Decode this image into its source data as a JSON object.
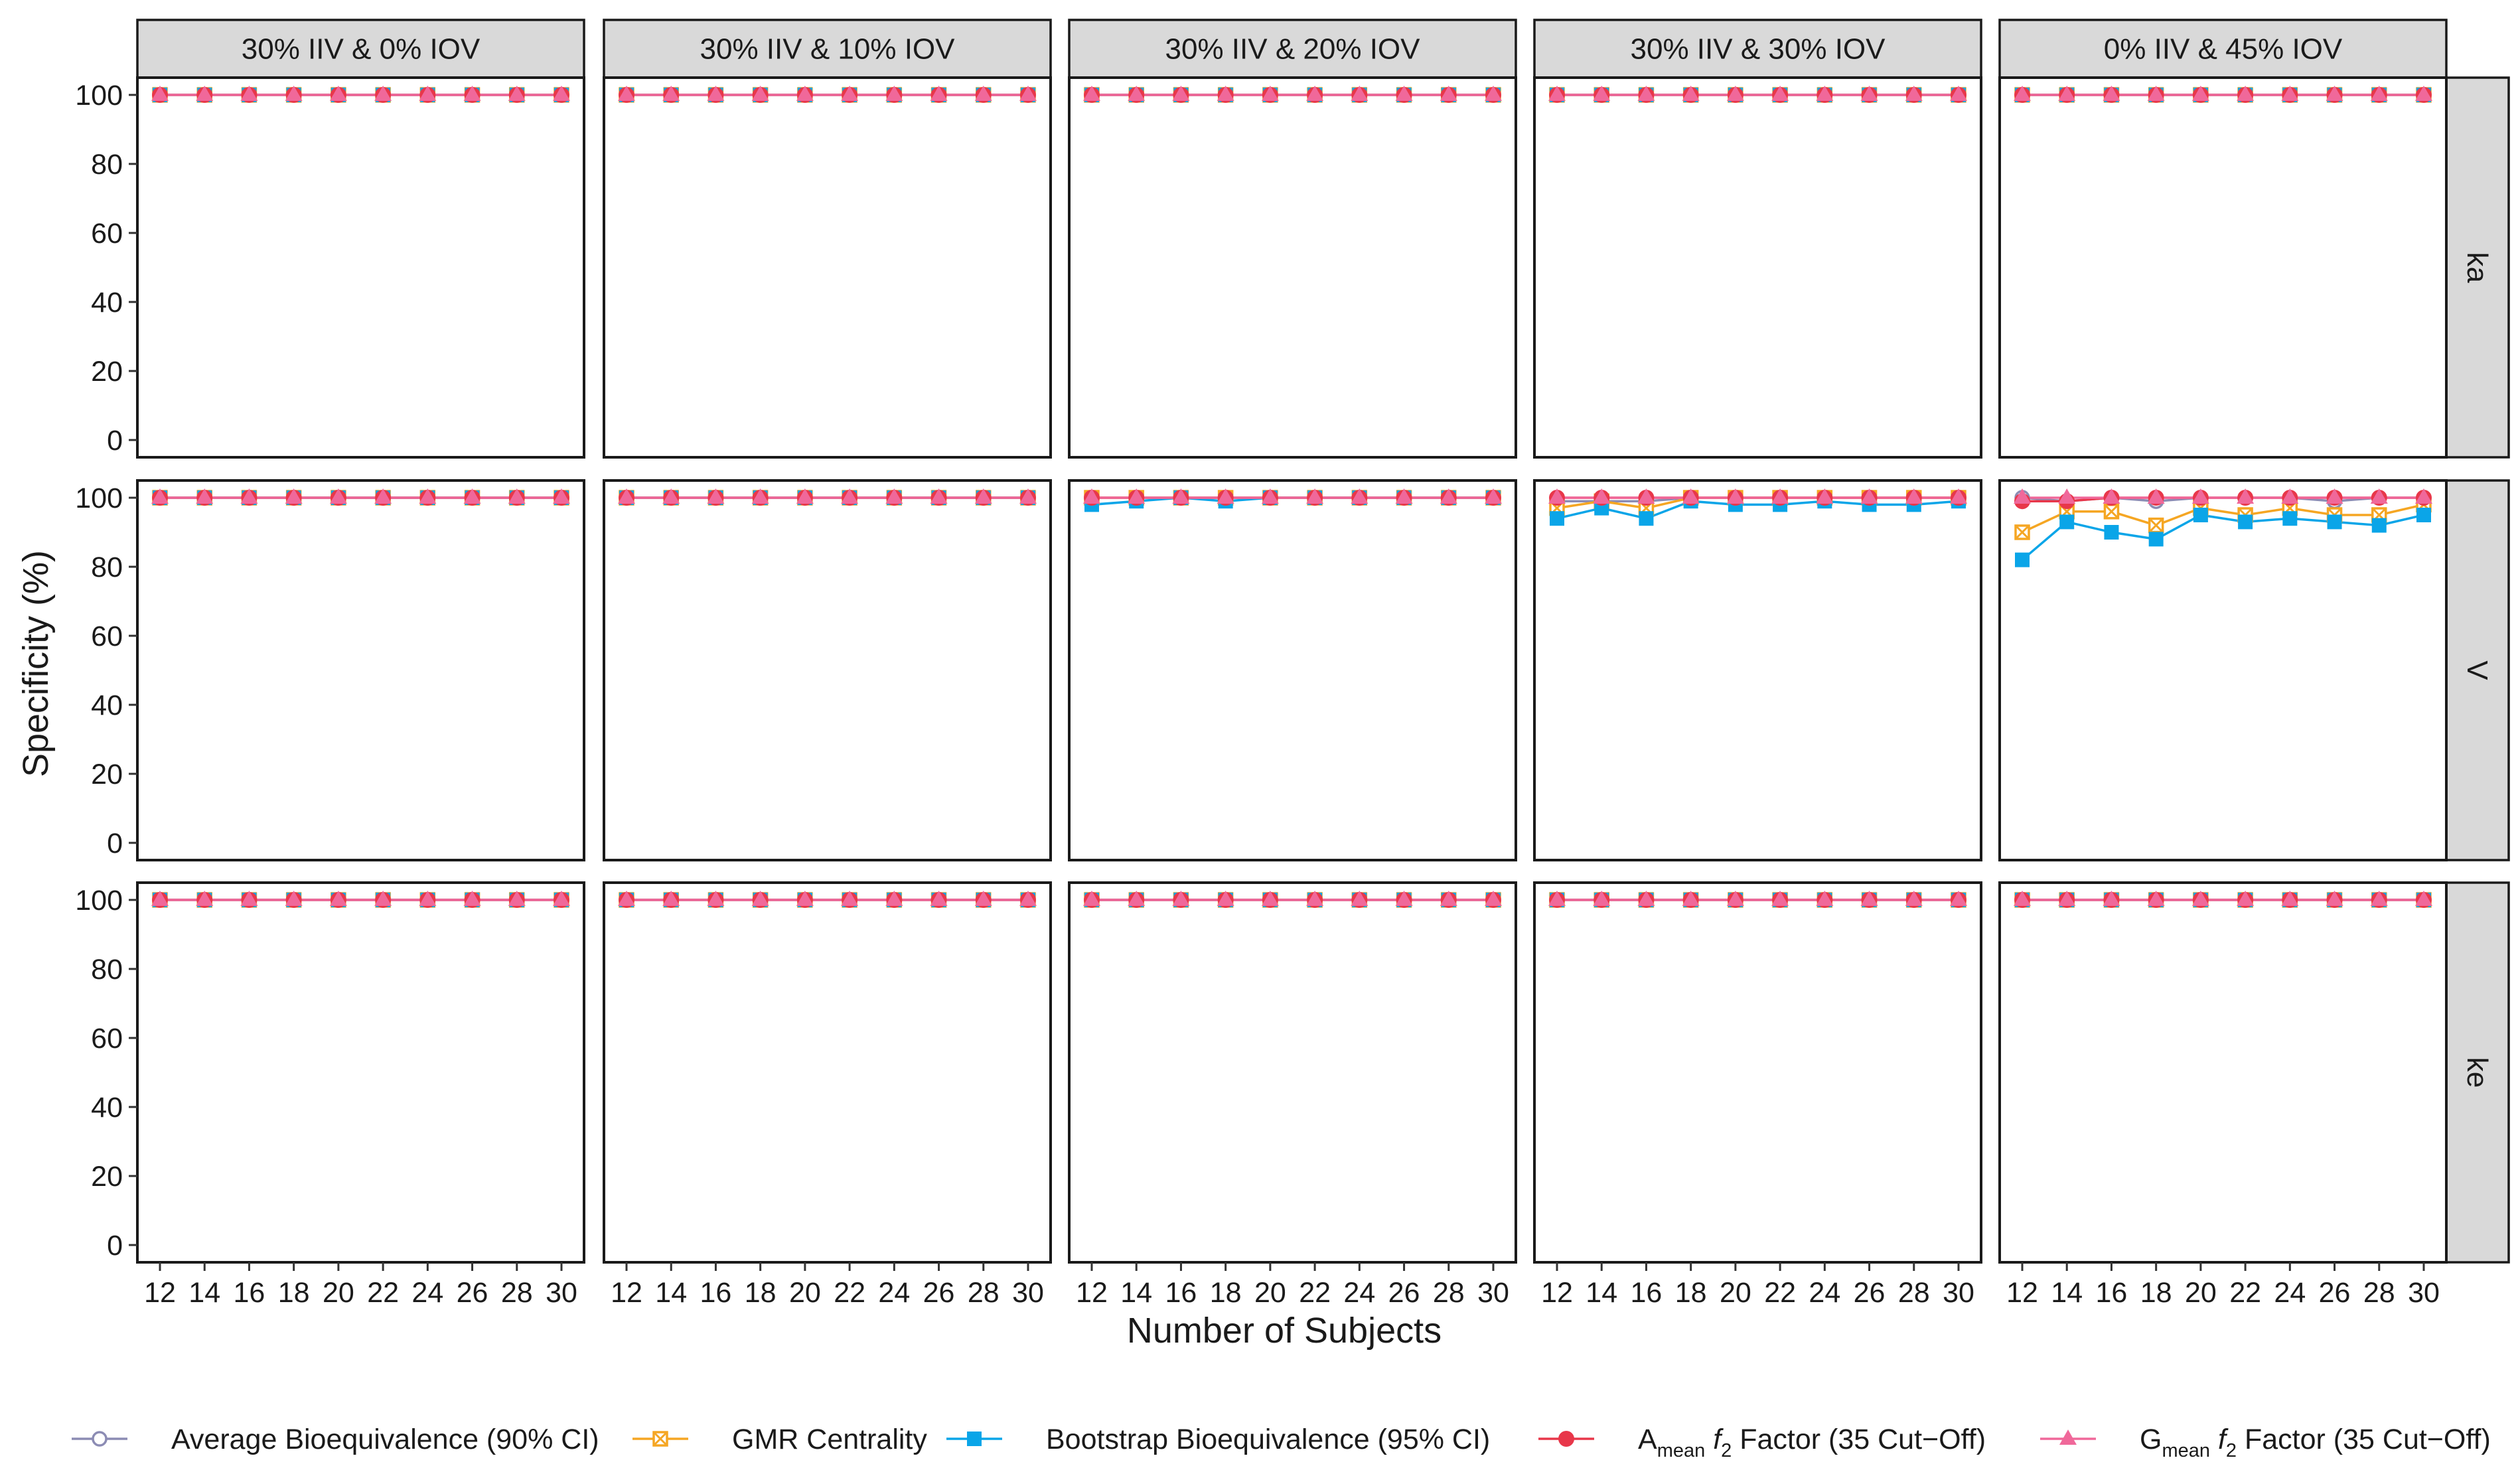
{
  "chart_data": {
    "type": "line",
    "layout": "faceted grid (rows x columns)",
    "title": "",
    "xlabel": "Number of Subjects",
    "ylabel": "Specificity (%)",
    "ylim": [
      0,
      100
    ],
    "yticks": [
      0,
      20,
      40,
      60,
      80,
      100
    ],
    "x": [
      12,
      14,
      16,
      18,
      20,
      22,
      24,
      26,
      28,
      30
    ],
    "grid": false,
    "legend_position": "bottom",
    "columns": [
      "30% IIV & 0% IOV",
      "30% IIV & 10% IOV",
      "30% IIV & 20% IOV",
      "30% IIV & 30% IOV",
      "0% IIV & 45% IOV"
    ],
    "rows": [
      "ka",
      "V",
      "ke"
    ],
    "series": [
      {
        "key": "abe",
        "name": "Average Bioequivalence (90% CI)",
        "color": "#8c8cb4",
        "marker": "open-circle"
      },
      {
        "key": "gmr",
        "name": "GMR Centrality",
        "color": "#f5a623",
        "marker": "crossed-square"
      },
      {
        "key": "boot",
        "name": "Bootstrap Bioequivalence (95% CI)",
        "color": "#0aa5e8",
        "marker": "filled-square"
      },
      {
        "key": "amean",
        "name": "Amean f2 Factor (35 Cut-Off)",
        "label_main": "A",
        "label_sub": "mean",
        "label_rest": " Factor (35 Cut−Off)",
        "color": "#e8374a",
        "marker": "filled-circle"
      },
      {
        "key": "gmean",
        "name": "Gmean f2 Factor (35 Cut-Off)",
        "label_main": "G",
        "label_sub": "mean",
        "label_rest": " Factor (35 Cut−Off)",
        "color": "#f0689a",
        "marker": "filled-triangle"
      }
    ],
    "panels": [
      {
        "row": "ka",
        "column": "30% IIV & 0% IOV",
        "abe": [
          100,
          100,
          100,
          100,
          100,
          100,
          100,
          100,
          100,
          100
        ],
        "gmr": [
          100,
          100,
          100,
          100,
          100,
          100,
          100,
          100,
          100,
          100
        ],
        "boot": [
          100,
          100,
          100,
          100,
          100,
          100,
          100,
          100,
          100,
          100
        ],
        "amean": [
          100,
          100,
          100,
          100,
          100,
          100,
          100,
          100,
          100,
          100
        ],
        "gmean": [
          100,
          100,
          100,
          100,
          100,
          100,
          100,
          100,
          100,
          100
        ]
      },
      {
        "row": "ka",
        "column": "30% IIV & 10% IOV",
        "abe": [
          100,
          100,
          100,
          100,
          100,
          100,
          100,
          100,
          100,
          100
        ],
        "gmr": [
          100,
          100,
          100,
          100,
          100,
          100,
          100,
          100,
          100,
          100
        ],
        "boot": [
          100,
          100,
          100,
          100,
          100,
          100,
          100,
          100,
          100,
          100
        ],
        "amean": [
          100,
          100,
          100,
          100,
          100,
          100,
          100,
          100,
          100,
          100
        ],
        "gmean": [
          100,
          100,
          100,
          100,
          100,
          100,
          100,
          100,
          100,
          100
        ]
      },
      {
        "row": "ka",
        "column": "30% IIV & 20% IOV",
        "abe": [
          100,
          100,
          100,
          100,
          100,
          100,
          100,
          100,
          100,
          100
        ],
        "gmr": [
          100,
          100,
          100,
          100,
          100,
          100,
          100,
          100,
          100,
          100
        ],
        "boot": [
          100,
          100,
          100,
          100,
          100,
          100,
          100,
          100,
          100,
          100
        ],
        "amean": [
          100,
          100,
          100,
          100,
          100,
          100,
          100,
          100,
          100,
          100
        ],
        "gmean": [
          100,
          100,
          100,
          100,
          100,
          100,
          100,
          100,
          100,
          100
        ]
      },
      {
        "row": "ka",
        "column": "30% IIV & 30% IOV",
        "abe": [
          100,
          100,
          100,
          100,
          100,
          100,
          100,
          100,
          100,
          100
        ],
        "gmr": [
          100,
          100,
          100,
          100,
          100,
          100,
          100,
          100,
          100,
          100
        ],
        "boot": [
          100,
          100,
          100,
          100,
          100,
          100,
          100,
          100,
          100,
          100
        ],
        "amean": [
          100,
          100,
          100,
          100,
          100,
          100,
          100,
          100,
          100,
          100
        ],
        "gmean": [
          100,
          100,
          100,
          100,
          100,
          100,
          100,
          100,
          100,
          100
        ]
      },
      {
        "row": "ka",
        "column": "0% IIV & 45% IOV",
        "abe": [
          100,
          100,
          100,
          100,
          100,
          100,
          100,
          100,
          100,
          100
        ],
        "gmr": [
          100,
          100,
          100,
          100,
          100,
          100,
          100,
          100,
          100,
          100
        ],
        "boot": [
          100,
          100,
          100,
          100,
          100,
          100,
          100,
          100,
          100,
          100
        ],
        "amean": [
          100,
          100,
          100,
          100,
          100,
          100,
          100,
          100,
          100,
          100
        ],
        "gmean": [
          100,
          100,
          100,
          100,
          100,
          100,
          100,
          100,
          100,
          100
        ]
      },
      {
        "row": "V",
        "column": "30% IIV & 0% IOV",
        "abe": [
          100,
          100,
          100,
          100,
          100,
          100,
          100,
          100,
          100,
          100
        ],
        "gmr": [
          100,
          100,
          100,
          100,
          100,
          100,
          100,
          100,
          100,
          100
        ],
        "boot": [
          100,
          100,
          100,
          100,
          100,
          100,
          100,
          100,
          100,
          100
        ],
        "amean": [
          100,
          100,
          100,
          100,
          100,
          100,
          100,
          100,
          100,
          100
        ],
        "gmean": [
          100,
          100,
          100,
          100,
          100,
          100,
          100,
          100,
          100,
          100
        ]
      },
      {
        "row": "V",
        "column": "30% IIV & 10% IOV",
        "abe": [
          100,
          100,
          100,
          100,
          100,
          100,
          100,
          100,
          100,
          100
        ],
        "gmr": [
          100,
          100,
          100,
          100,
          100,
          100,
          100,
          100,
          100,
          100
        ],
        "boot": [
          100,
          100,
          100,
          100,
          100,
          100,
          100,
          100,
          100,
          100
        ],
        "amean": [
          100,
          100,
          100,
          100,
          100,
          100,
          100,
          100,
          100,
          100
        ],
        "gmean": [
          100,
          100,
          100,
          100,
          100,
          100,
          100,
          100,
          100,
          100
        ]
      },
      {
        "row": "V",
        "column": "30% IIV & 20% IOV",
        "abe": [
          100,
          100,
          100,
          100,
          100,
          100,
          100,
          100,
          100,
          100
        ],
        "gmr": [
          100,
          100,
          100,
          100,
          100,
          100,
          100,
          100,
          100,
          100
        ],
        "boot": [
          98,
          99,
          100,
          99,
          100,
          100,
          100,
          100,
          100,
          100
        ],
        "amean": [
          100,
          100,
          100,
          100,
          100,
          100,
          100,
          100,
          100,
          100
        ],
        "gmean": [
          100,
          100,
          100,
          100,
          100,
          100,
          100,
          100,
          100,
          100
        ]
      },
      {
        "row": "V",
        "column": "30% IIV & 30% IOV",
        "abe": [
          99,
          99,
          99,
          100,
          100,
          100,
          100,
          100,
          100,
          100
        ],
        "gmr": [
          97,
          99,
          97,
          100,
          100,
          100,
          100,
          100,
          100,
          100
        ],
        "boot": [
          94,
          97,
          94,
          99,
          98,
          98,
          99,
          98,
          98,
          99
        ],
        "amean": [
          100,
          100,
          100,
          100,
          100,
          100,
          100,
          100,
          100,
          100
        ],
        "gmean": [
          100,
          100,
          100,
          100,
          100,
          100,
          100,
          100,
          100,
          100
        ]
      },
      {
        "row": "V",
        "column": "0% IIV & 45% IOV",
        "abe": [
          100,
          99,
          100,
          99,
          100,
          100,
          100,
          99,
          100,
          100
        ],
        "gmr": [
          90,
          96,
          96,
          92,
          97,
          95,
          97,
          95,
          95,
          98
        ],
        "boot": [
          82,
          93,
          90,
          88,
          95,
          93,
          94,
          93,
          92,
          95
        ],
        "amean": [
          99,
          99,
          100,
          100,
          100,
          100,
          100,
          100,
          100,
          100
        ],
        "gmean": [
          100,
          100,
          100,
          100,
          100,
          100,
          100,
          100,
          100,
          100
        ]
      },
      {
        "row": "ke",
        "column": "30% IIV & 0% IOV",
        "abe": [
          100,
          100,
          100,
          100,
          100,
          100,
          100,
          100,
          100,
          100
        ],
        "gmr": [
          100,
          100,
          100,
          100,
          100,
          100,
          100,
          100,
          100,
          100
        ],
        "boot": [
          100,
          100,
          100,
          100,
          100,
          100,
          100,
          100,
          100,
          100
        ],
        "amean": [
          100,
          100,
          100,
          100,
          100,
          100,
          100,
          100,
          100,
          100
        ],
        "gmean": [
          100,
          100,
          100,
          100,
          100,
          100,
          100,
          100,
          100,
          100
        ]
      },
      {
        "row": "ke",
        "column": "30% IIV & 10% IOV",
        "abe": [
          100,
          100,
          100,
          100,
          100,
          100,
          100,
          100,
          100,
          100
        ],
        "gmr": [
          100,
          100,
          100,
          100,
          100,
          100,
          100,
          100,
          100,
          100
        ],
        "boot": [
          100,
          100,
          100,
          100,
          100,
          100,
          100,
          100,
          100,
          100
        ],
        "amean": [
          100,
          100,
          100,
          100,
          100,
          100,
          100,
          100,
          100,
          100
        ],
        "gmean": [
          100,
          100,
          100,
          100,
          100,
          100,
          100,
          100,
          100,
          100
        ]
      },
      {
        "row": "ke",
        "column": "30% IIV & 20% IOV",
        "abe": [
          100,
          100,
          100,
          100,
          100,
          100,
          100,
          100,
          100,
          100
        ],
        "gmr": [
          100,
          100,
          100,
          100,
          100,
          100,
          100,
          100,
          100,
          100
        ],
        "boot": [
          100,
          100,
          100,
          100,
          100,
          100,
          100,
          100,
          100,
          100
        ],
        "amean": [
          100,
          100,
          100,
          100,
          100,
          100,
          100,
          100,
          100,
          100
        ],
        "gmean": [
          100,
          100,
          100,
          100,
          100,
          100,
          100,
          100,
          100,
          100
        ]
      },
      {
        "row": "ke",
        "column": "30% IIV & 30% IOV",
        "abe": [
          100,
          100,
          100,
          100,
          100,
          100,
          100,
          100,
          100,
          100
        ],
        "gmr": [
          100,
          100,
          100,
          100,
          100,
          100,
          100,
          100,
          100,
          100
        ],
        "boot": [
          100,
          100,
          100,
          100,
          100,
          100,
          100,
          100,
          100,
          100
        ],
        "amean": [
          100,
          100,
          100,
          100,
          100,
          100,
          100,
          100,
          100,
          100
        ],
        "gmean": [
          100,
          100,
          100,
          100,
          100,
          100,
          100,
          100,
          100,
          100
        ]
      },
      {
        "row": "ke",
        "column": "0% IIV & 45% IOV",
        "abe": [
          100,
          100,
          100,
          100,
          100,
          100,
          100,
          100,
          100,
          100
        ],
        "gmr": [
          100,
          100,
          100,
          100,
          100,
          100,
          100,
          100,
          100,
          100
        ],
        "boot": [
          100,
          100,
          100,
          100,
          100,
          100,
          100,
          100,
          100,
          100
        ],
        "amean": [
          100,
          100,
          100,
          100,
          100,
          100,
          100,
          100,
          100,
          100
        ],
        "gmean": [
          100,
          100,
          100,
          100,
          100,
          100,
          100,
          100,
          100,
          100
        ]
      }
    ]
  }
}
